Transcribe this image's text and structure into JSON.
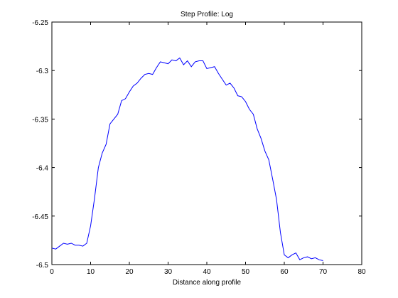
{
  "chart_data": {
    "type": "line",
    "title": "Step Profile: Log",
    "xlabel": "Distance along profile",
    "ylabel": "",
    "xlim": [
      0,
      80
    ],
    "ylim": [
      -6.5,
      -6.25
    ],
    "xticks": [
      "0",
      "10",
      "20",
      "30",
      "40",
      "50",
      "60",
      "70",
      "80"
    ],
    "yticks": [
      "-6.25",
      "-6.3",
      "-6.35",
      "-6.4",
      "-6.45",
      "-6.5"
    ],
    "xtick_values": [
      0,
      10,
      20,
      30,
      40,
      50,
      60,
      70,
      80
    ],
    "ytick_values": [
      -6.25,
      -6.3,
      -6.35,
      -6.4,
      -6.45,
      -6.5
    ],
    "grid": false,
    "line_color": "#0000ff",
    "series": [
      {
        "x": [
          0,
          1,
          2,
          3,
          4,
          5,
          6,
          7,
          8,
          9,
          10,
          11,
          12,
          13,
          14,
          15,
          16,
          17,
          18,
          19,
          20,
          21,
          22,
          23,
          24,
          25,
          26,
          27,
          28,
          29,
          30,
          31,
          32,
          33,
          34,
          35,
          36,
          37,
          38,
          39,
          40,
          41,
          42,
          43,
          44,
          45,
          46,
          47,
          48,
          49,
          50,
          51,
          52,
          53,
          54,
          55,
          56,
          57,
          58,
          59,
          60,
          61,
          62,
          63,
          64,
          65,
          66,
          67,
          68,
          69,
          70
        ],
        "y": [
          -6.483,
          -6.484,
          -6.481,
          -6.478,
          -6.479,
          -6.478,
          -6.48,
          -6.48,
          -6.481,
          -6.478,
          -6.46,
          -6.432,
          -6.4,
          -6.385,
          -6.376,
          -6.355,
          -6.35,
          -6.345,
          -6.331,
          -6.329,
          -6.322,
          -6.316,
          -6.313,
          -6.308,
          -6.304,
          -6.303,
          -6.304,
          -6.297,
          -6.291,
          -6.292,
          -6.293,
          -6.289,
          -6.29,
          -6.287,
          -6.294,
          -6.29,
          -6.296,
          -6.291,
          -6.29,
          -6.29,
          -6.298,
          -6.297,
          -6.296,
          -6.303,
          -6.309,
          -6.315,
          -6.313,
          -6.318,
          -6.326,
          -6.327,
          -6.332,
          -6.34,
          -6.345,
          -6.36,
          -6.37,
          -6.383,
          -6.392,
          -6.412,
          -6.433,
          -6.467,
          -6.49,
          -6.493,
          -6.49,
          -6.488,
          -6.495,
          -6.493,
          -6.492,
          -6.494,
          -6.493,
          -6.495,
          -6.496
        ]
      }
    ]
  }
}
